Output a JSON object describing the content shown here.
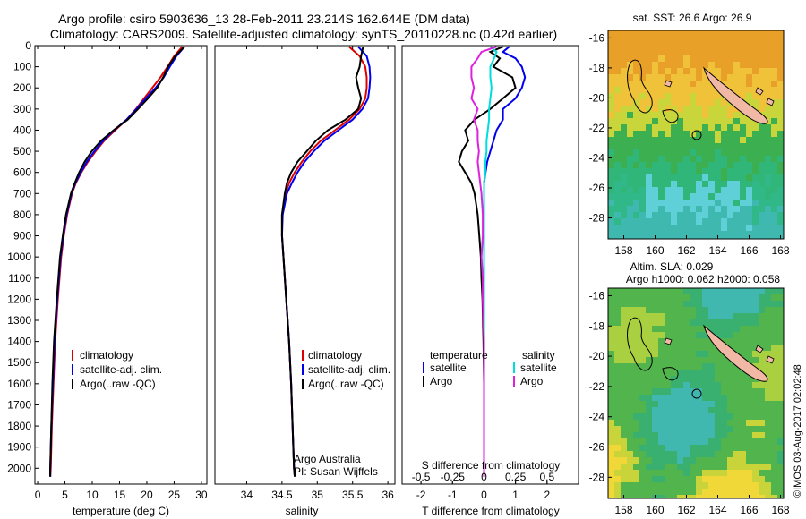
{
  "header": {
    "line1": "Argo profile: csiro 5903636_13 28-Feb-2011 23.214S 162.644E (DM data)",
    "line2": "Climatology: CARS2009. Satellite-adjusted climatology: synTS_20110228.nc (0.42d earlier)"
  },
  "colors": {
    "climatology": "#dd0000",
    "satellite": "#0000ee",
    "argo": "#000000",
    "s_satellite": "#00dddd",
    "s_argo": "#dd22dd"
  },
  "chart_data": [
    {
      "type": "line",
      "id": "temperature",
      "xlabel": "temperature (deg C)",
      "xlim": [
        -0.5,
        31
      ],
      "ylim": [
        0,
        2075
      ],
      "xticks": [
        0,
        5,
        10,
        15,
        20,
        25,
        30
      ],
      "yticks": [
        0,
        100,
        200,
        300,
        400,
        500,
        600,
        700,
        800,
        900,
        1000,
        1100,
        1200,
        1300,
        1400,
        1500,
        1600,
        1700,
        1800,
        1900,
        2000
      ],
      "legend": [
        "climatology",
        "satellite-adj. clim.",
        "Argo(..raw -QC)"
      ],
      "depth": [
        5,
        50,
        100,
        150,
        200,
        250,
        300,
        350,
        400,
        450,
        500,
        550,
        600,
        650,
        700,
        800,
        900,
        1000,
        1200,
        1400,
        1600,
        1800,
        2000,
        2040
      ],
      "series": [
        {
          "name": "climatology",
          "color": "#dd0000",
          "values": [
            26.5,
            25.0,
            23.8,
            22.5,
            21.0,
            19.5,
            18.0,
            16.3,
            14.2,
            12.2,
            10.6,
            9.2,
            8.0,
            7.0,
            6.3,
            5.4,
            4.8,
            4.3,
            3.7,
            3.2,
            2.9,
            2.6,
            2.4,
            2.3
          ]
        },
        {
          "name": "satellite-adj. clim.",
          "color": "#0000ee",
          "values": [
            26.9,
            25.4,
            24.2,
            23.1,
            21.6,
            19.8,
            18.1,
            16.3,
            14.0,
            12.0,
            10.4,
            9.0,
            7.9,
            6.9,
            6.2,
            5.3,
            4.7,
            4.2,
            3.6,
            3.1,
            2.8,
            2.5,
            2.3,
            2.3
          ]
        },
        {
          "name": "Argo(..raw -QC)",
          "color": "#000000",
          "values": [
            26.9,
            25.2,
            23.9,
            23.0,
            21.9,
            20.2,
            18.4,
            16.5,
            13.9,
            11.6,
            9.9,
            8.6,
            7.6,
            6.8,
            6.1,
            5.2,
            4.6,
            4.1,
            3.5,
            3.0,
            2.7,
            2.5,
            2.3,
            2.3
          ]
        }
      ]
    },
    {
      "type": "line",
      "id": "salinity",
      "xlabel": "salinity",
      "xlim": [
        33.55,
        36.1
      ],
      "ylim": [
        0,
        2075
      ],
      "xticks": [
        34,
        34.5,
        35,
        35.5,
        36
      ],
      "legend": [
        "climatology",
        "satellite-adj. clim.",
        "Argo(..raw -QC)"
      ],
      "annotation": [
        "Argo Australia",
        "PI: Susan Wijffels"
      ],
      "depth": [
        5,
        50,
        100,
        150,
        200,
        250,
        300,
        350,
        400,
        450,
        500,
        550,
        600,
        650,
        700,
        800,
        900,
        1000,
        1200,
        1400,
        1600,
        1800,
        2000,
        2040
      ],
      "series": [
        {
          "name": "climatology",
          "color": "#dd0000",
          "values": [
            35.45,
            35.6,
            35.68,
            35.7,
            35.7,
            35.68,
            35.6,
            35.45,
            35.25,
            35.05,
            34.9,
            34.78,
            34.68,
            34.6,
            34.55,
            34.5,
            34.5,
            34.52,
            34.56,
            34.6,
            34.63,
            34.65,
            34.67,
            34.68
          ]
        },
        {
          "name": "satellite-adj. clim.",
          "color": "#0000ee",
          "values": [
            35.58,
            35.7,
            35.74,
            35.75,
            35.74,
            35.72,
            35.64,
            35.5,
            35.3,
            35.1,
            34.95,
            34.82,
            34.72,
            34.64,
            34.57,
            34.51,
            34.5,
            34.52,
            34.56,
            34.6,
            34.63,
            34.65,
            34.67,
            34.68
          ]
        },
        {
          "name": "Argo(..raw -QC)",
          "color": "#000000",
          "values": [
            35.65,
            35.62,
            35.6,
            35.55,
            35.58,
            35.62,
            35.58,
            35.4,
            35.15,
            34.98,
            34.85,
            34.72,
            34.63,
            34.57,
            34.54,
            34.5,
            34.5,
            34.52,
            34.56,
            34.6,
            34.63,
            34.65,
            34.67,
            34.68
          ]
        }
      ]
    },
    {
      "type": "line",
      "id": "difference",
      "xlabel": "T difference from climatology",
      "title": "S difference from climatology",
      "xlim": [
        -2.6,
        3.0
      ],
      "ylim": [
        0,
        2075
      ],
      "xticks": [
        -2,
        -1,
        0,
        1,
        2
      ],
      "sticks": [
        -0.5,
        -0.25,
        0,
        0.25,
        0.5
      ],
      "stick_labels": [
        "-0.5",
        "-0.25",
        "0",
        "0.25",
        "0.5"
      ],
      "legend_temperature": {
        "heading": "temperature",
        "items": [
          "satellite",
          "Argo"
        ]
      },
      "legend_salinity": {
        "heading": "salinity",
        "items": [
          "satellite",
          "Argo"
        ]
      },
      "depth": [
        5,
        30,
        60,
        100,
        150,
        200,
        250,
        300,
        350,
        400,
        450,
        500,
        550,
        600,
        650,
        700,
        800,
        900,
        1000,
        1100,
        1200,
        1400,
        1600,
        1800,
        2000,
        2040
      ],
      "series": [
        {
          "name": "T satellite",
          "color": "#0000ee",
          "values": [
            0.8,
            0.6,
            1.0,
            1.2,
            1.3,
            1.2,
            1.0,
            0.6,
            0.6,
            0.4,
            0.3,
            0.2,
            0.1,
            0.05,
            0.0,
            0.0,
            0.0,
            0.0,
            0.0,
            0.0,
            0.0,
            0.0,
            0.0,
            0.0,
            0.0,
            0.0
          ]
        },
        {
          "name": "T Argo",
          "color": "#000000",
          "values": [
            0.6,
            0.2,
            0.5,
            0.3,
            0.9,
            1.0,
            0.6,
            0.2,
            -0.3,
            -0.6,
            -0.5,
            -0.7,
            -0.8,
            -0.6,
            -0.4,
            -0.3,
            -0.2,
            -0.15,
            -0.1,
            -0.08,
            -0.05,
            -0.02,
            0.0,
            0.0,
            0.0,
            0.0
          ]
        },
        {
          "name": "S satellite",
          "color": "#00dddd",
          "values": [
            0.05,
            0.1,
            0.08,
            0.05,
            0.05,
            0.06,
            0.05,
            0.04,
            0.04,
            0.03,
            0.02,
            0.02,
            0.01,
            0.01,
            0.0,
            0.0,
            0.0,
            0.0,
            0.0,
            0.0,
            0.0,
            0.0,
            0.0,
            0.0,
            0.0,
            0.0
          ]
        },
        {
          "name": "S Argo",
          "color": "#dd22dd",
          "values": [
            0.1,
            -0.02,
            -0.05,
            -0.1,
            -0.1,
            -0.08,
            -0.1,
            -0.05,
            -0.08,
            -0.05,
            -0.05,
            -0.04,
            -0.05,
            -0.04,
            -0.03,
            -0.02,
            -0.01,
            -0.01,
            -0.02,
            -0.01,
            -0.01,
            0.0,
            0.0,
            0.0,
            0.0,
            0.0
          ]
        }
      ]
    },
    {
      "type": "heatmap",
      "id": "sst-map",
      "title": "sat. SST: 26.6  Argo: 26.9",
      "xlim": [
        157,
        168.2
      ],
      "ylim": [
        -29.4,
        -15.5
      ],
      "xticks": [
        158,
        160,
        162,
        164,
        166,
        168
      ],
      "yticks": [
        -16,
        -18,
        -20,
        -22,
        -24,
        -26,
        -28
      ],
      "profile_position": [
        162.644,
        -23.214
      ]
    },
    {
      "type": "heatmap",
      "id": "sla-map",
      "title_line1": "Altim. SLA: 0.029",
      "title_line2": "Argo h1000: 0.062  h2000: 0.058",
      "xlim": [
        157,
        168.2
      ],
      "ylim": [
        -29.4,
        -15.5
      ],
      "xticks": [
        158,
        160,
        162,
        164,
        166,
        168
      ],
      "yticks": [
        -16,
        -18,
        -20,
        -22,
        -24,
        -26,
        -28
      ],
      "profile_position": [
        162.644,
        -23.214
      ]
    }
  ],
  "side_note": "©IMOS 03-Aug-2017 02:02:48"
}
